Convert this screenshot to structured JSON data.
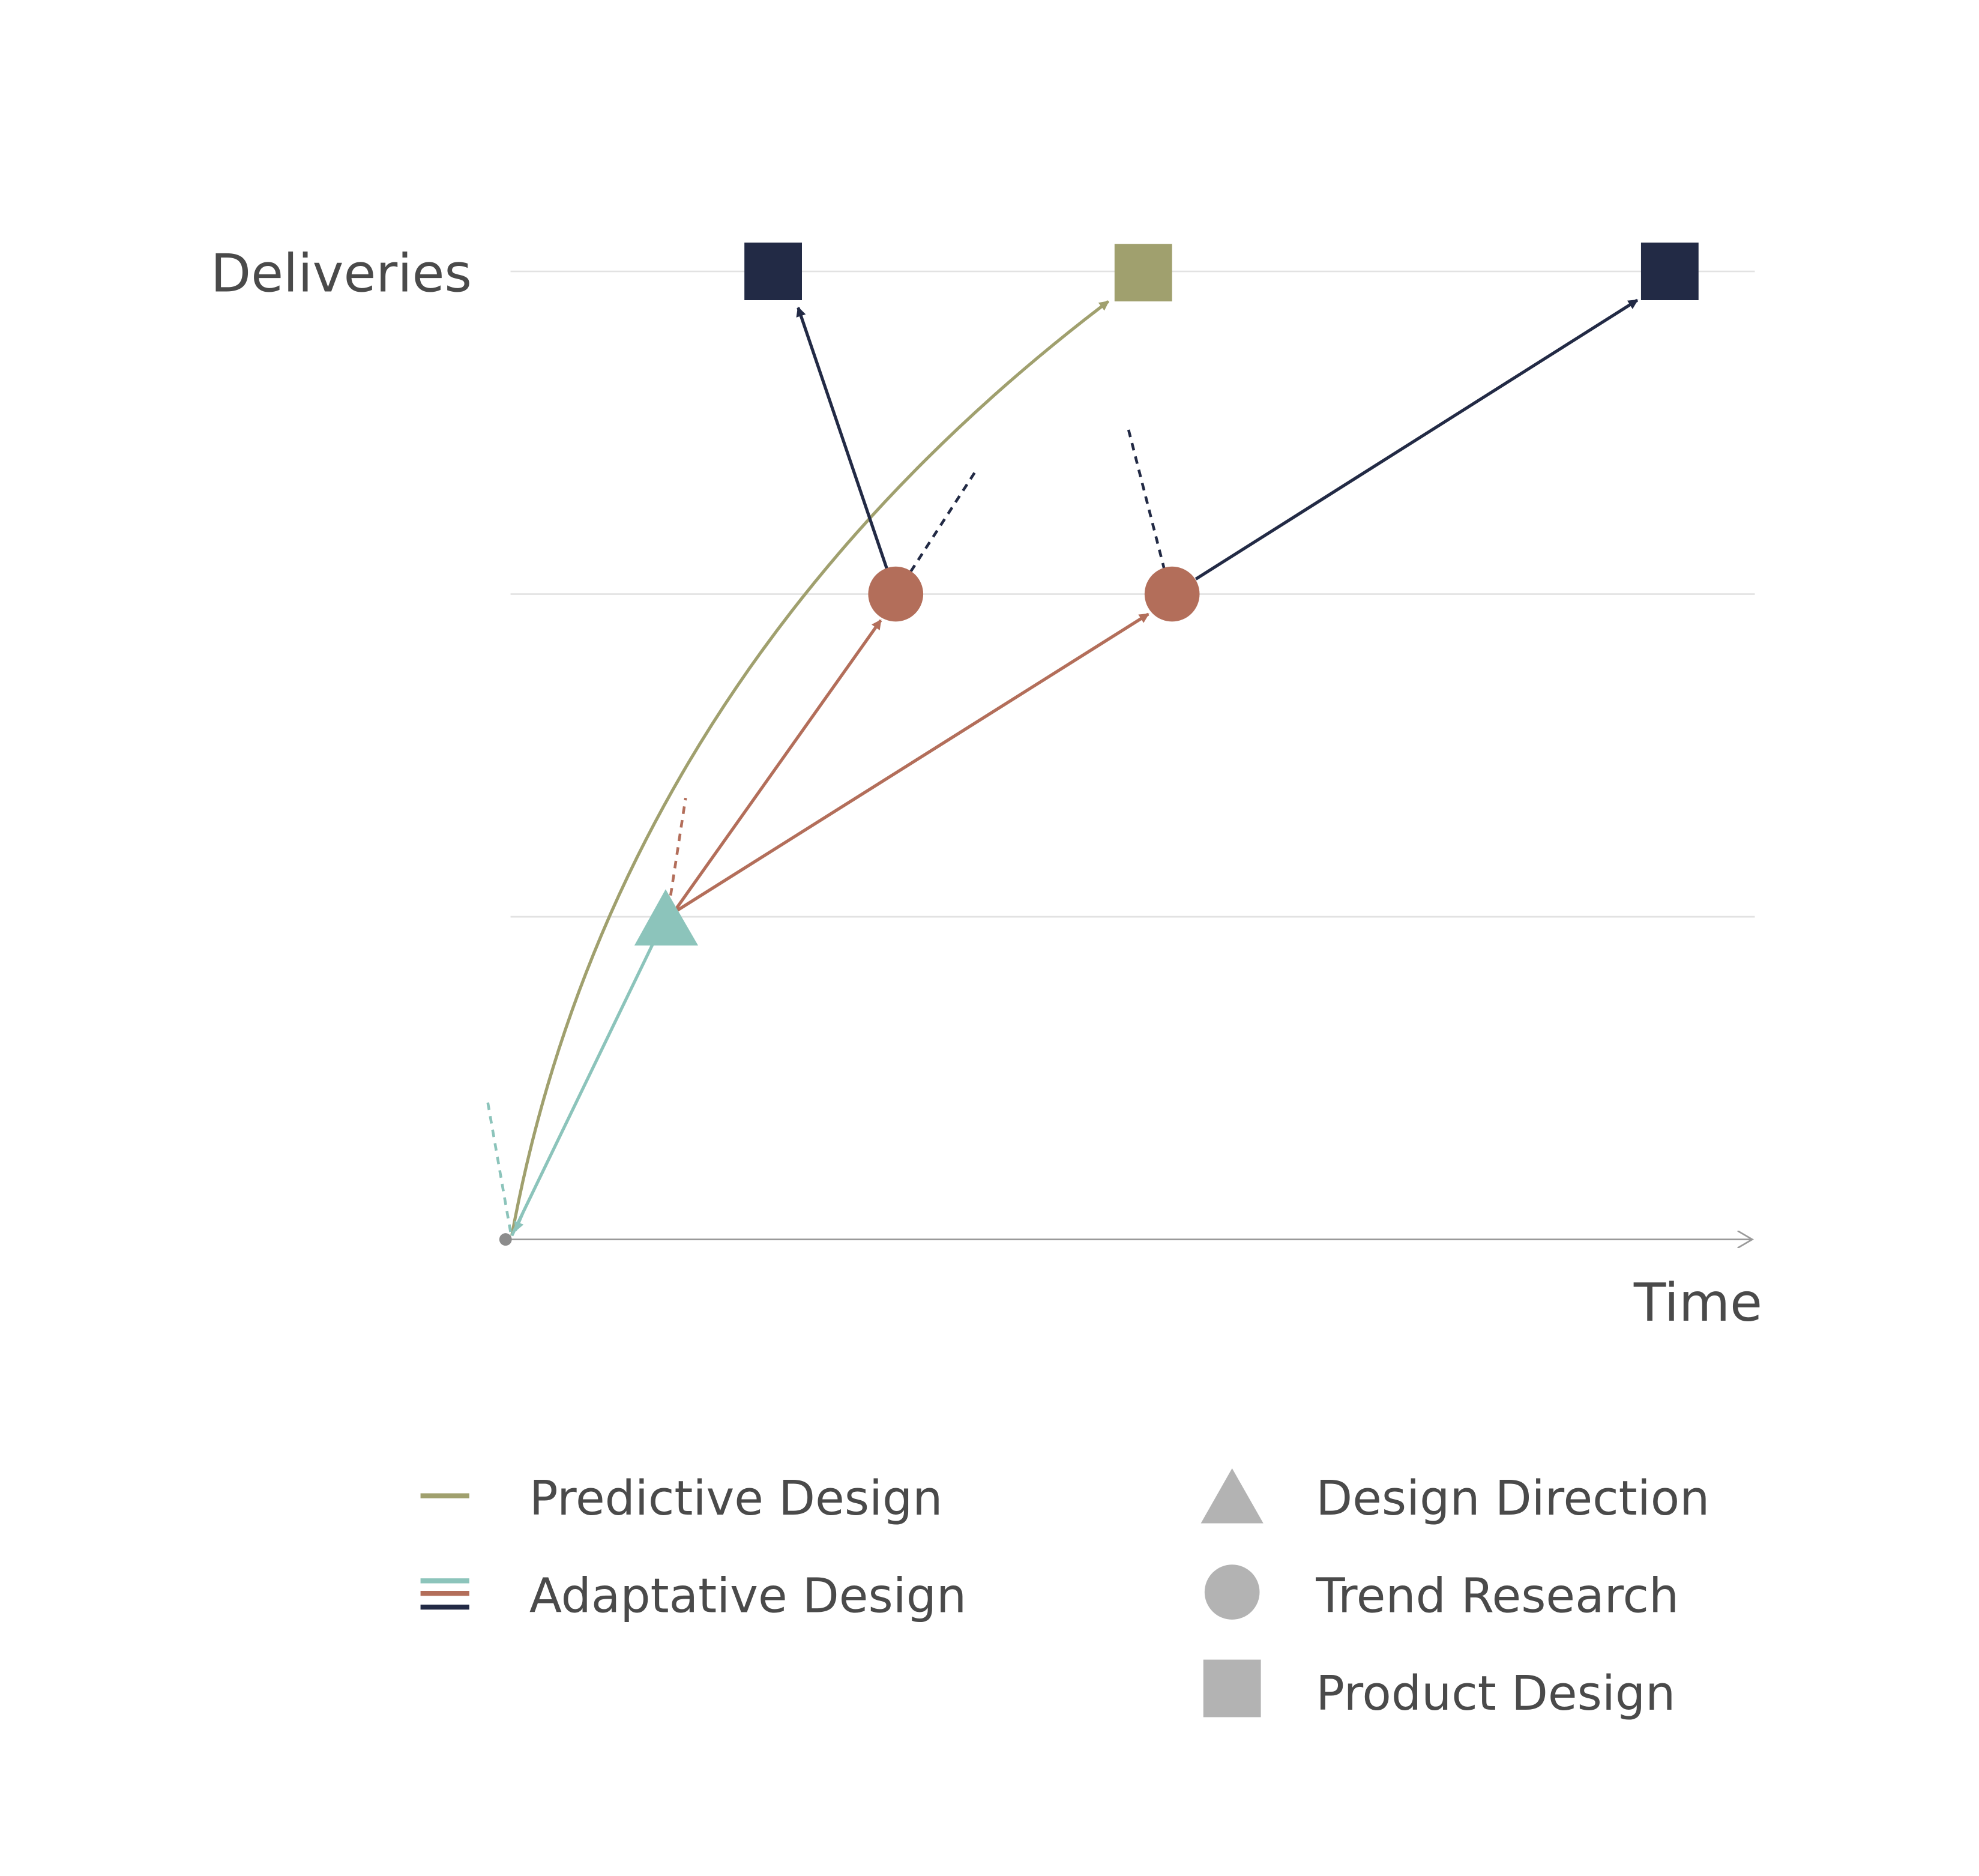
{
  "axes": {
    "y_label": "Deliveries",
    "x_label": "Time"
  },
  "legend": {
    "lines": [
      {
        "label": "Predictive Design",
        "colors": [
          "#a0a06e"
        ]
      },
      {
        "label": "Adaptative Design",
        "colors": [
          "#8cc4bb",
          "#b36e5a",
          "#222a45"
        ]
      }
    ],
    "shapes": [
      {
        "label": "Design Direction",
        "shape": "triangle",
        "color": "#b3b3b3"
      },
      {
        "label": "Trend Research",
        "shape": "circle",
        "color": "#b3b3b3"
      },
      {
        "label": "Product Design",
        "shape": "square",
        "color": "#b3b3b3"
      }
    ]
  },
  "colors": {
    "predictive": "#a0a06e",
    "adaptive_direction": "#8cc4bb",
    "adaptive_research": "#b36e5a",
    "adaptive_product": "#222a45",
    "grid": "#e2e2e2",
    "axis": "#9a9a9a",
    "text": "#4a4a4a"
  }
}
